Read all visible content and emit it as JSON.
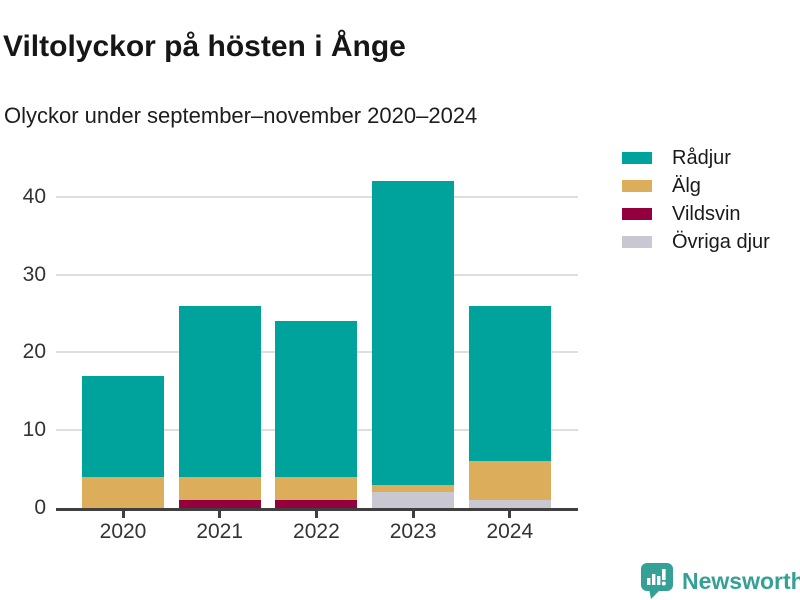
{
  "header": {
    "title": "Viltolyckor på hösten i Ånge",
    "subtitle": "Olyckor under september–november 2020–2024"
  },
  "chart_data": {
    "type": "bar",
    "stacked": true,
    "title": "Viltolyckor på hösten i Ånge",
    "subtitle": "Olyckor under september–november 2020–2024",
    "categories": [
      "2020",
      "2021",
      "2022",
      "2023",
      "2024"
    ],
    "series": [
      {
        "name": "Rådjur",
        "color": "#00a39b",
        "values": [
          13,
          22,
          20,
          39,
          20
        ]
      },
      {
        "name": "Älg",
        "color": "#dcad5a",
        "values": [
          4,
          3,
          3,
          1,
          5
        ]
      },
      {
        "name": "Vildsvin",
        "color": "#94003d",
        "values": [
          0,
          1,
          1,
          0,
          0
        ]
      },
      {
        "name": "Övriga djur",
        "color": "#c9c7d2",
        "values": [
          0,
          0,
          0,
          2,
          1
        ]
      }
    ],
    "stack_order_bottom_to_top": [
      "Övriga djur",
      "Vildsvin",
      "Älg",
      "Rådjur"
    ],
    "totals": [
      17,
      26,
      24,
      42,
      26
    ],
    "y_ticks": [
      0,
      10,
      20,
      30,
      40
    ],
    "ylim": [
      0,
      46
    ],
    "xlabel": "",
    "ylabel": "",
    "grid": "horizontal",
    "legend_position": "right",
    "axis_color": "#3f3f3f",
    "grid_color": "#dedede",
    "tick_label_color": "#333333"
  },
  "footer": {
    "brand": "Newsworthy",
    "brand_color": "#35a095"
  }
}
